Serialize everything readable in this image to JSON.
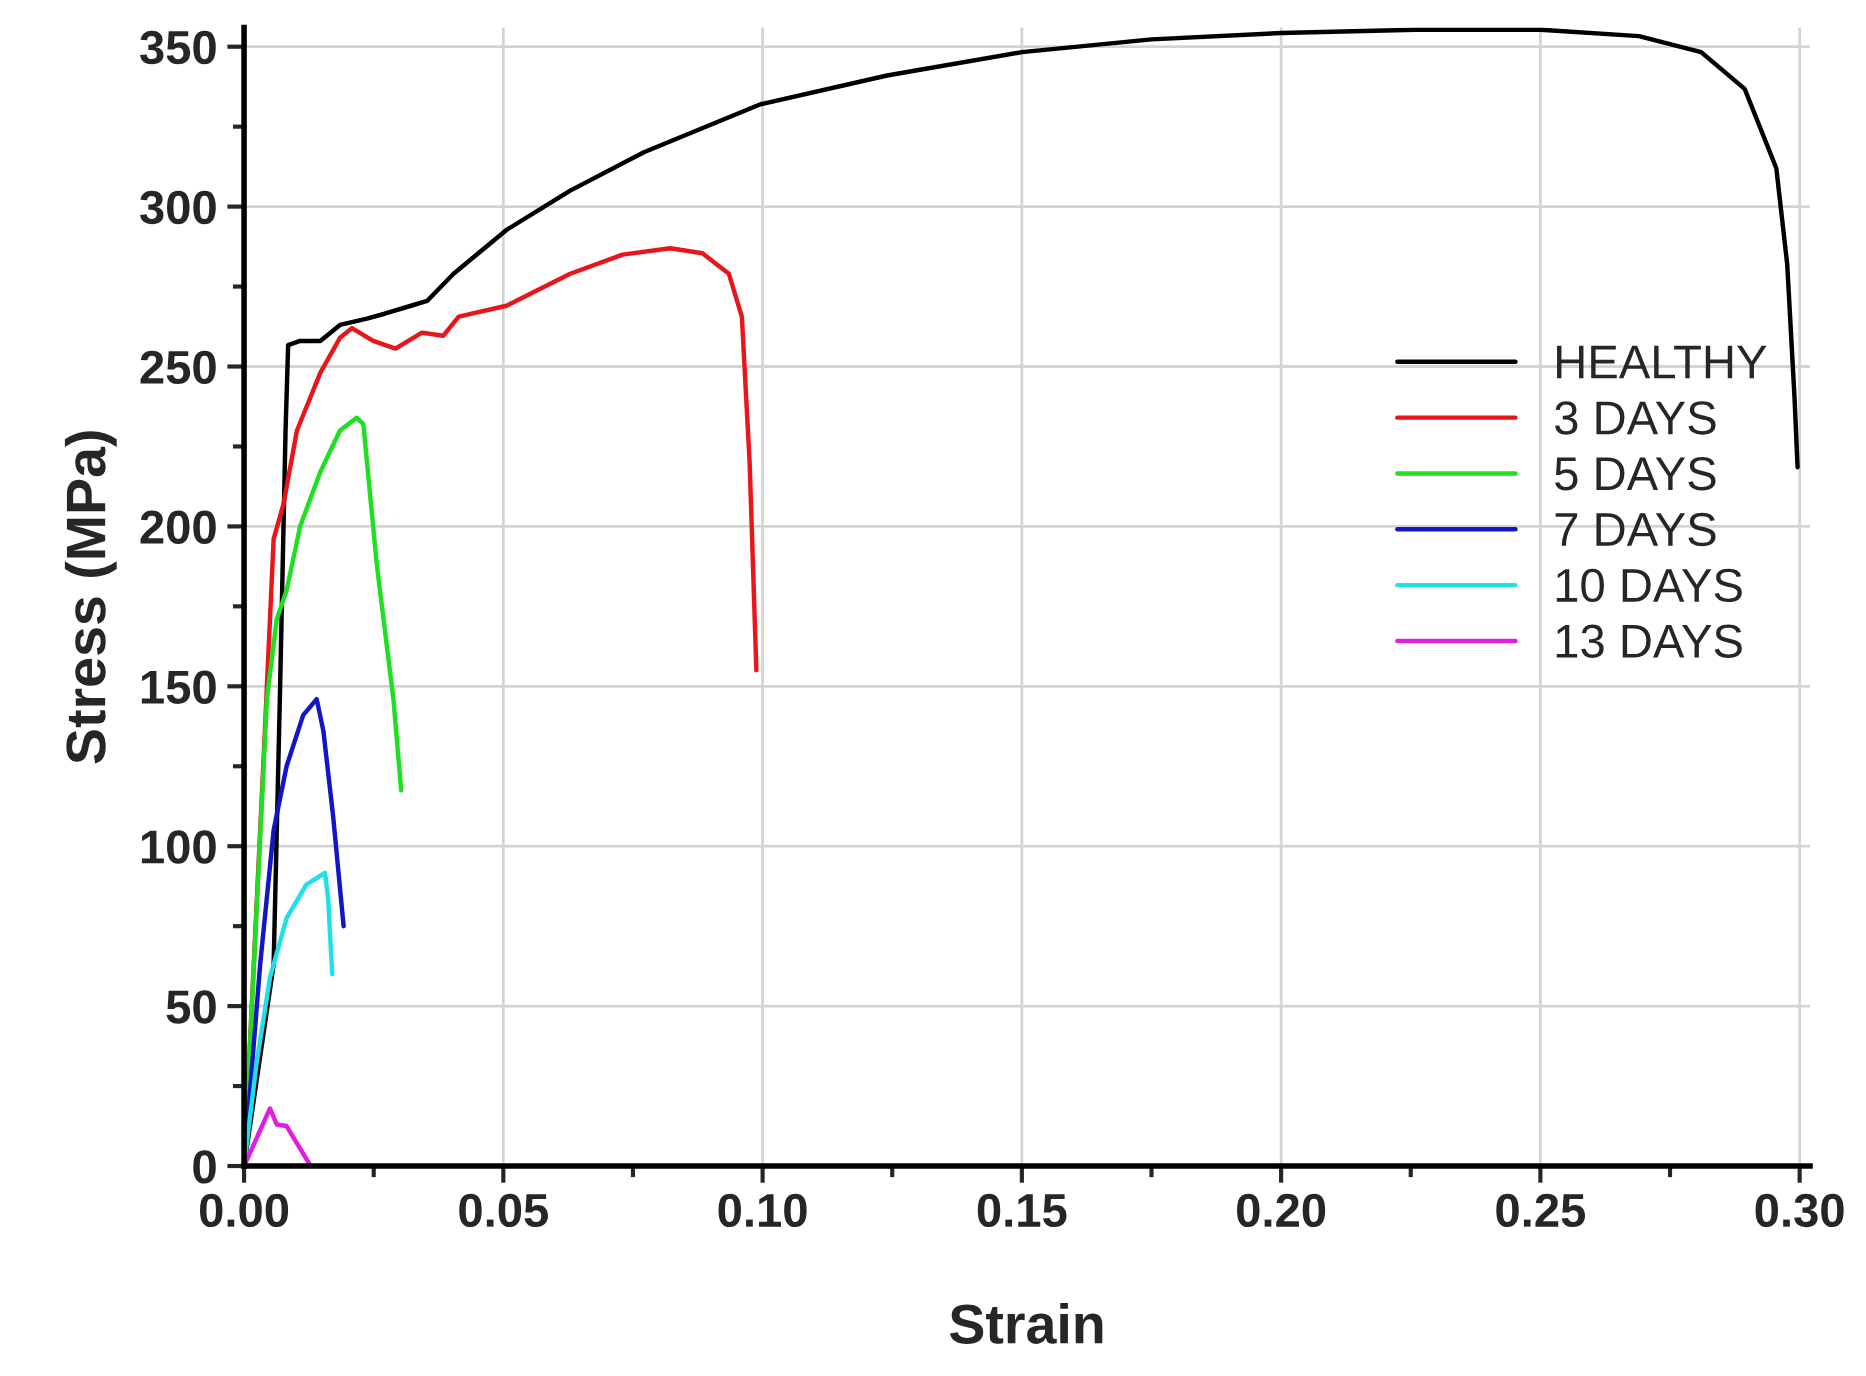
{
  "chart_data": {
    "type": "line",
    "xlabel": "Strain",
    "ylabel": "Stress (MPa)",
    "xlim": [
      0,
      0.302
    ],
    "ylim": [
      0,
      356
    ],
    "xticks": [
      {
        "value": 0,
        "label": "0.00"
      },
      {
        "value": 0.025,
        "label": null
      },
      {
        "value": 0.05,
        "label": "0.05"
      },
      {
        "value": 0.075,
        "label": null
      },
      {
        "value": 0.1,
        "label": "0.10"
      },
      {
        "value": 0.125,
        "label": null
      },
      {
        "value": 0.15,
        "label": "0.15"
      },
      {
        "value": 0.175,
        "label": null
      },
      {
        "value": 0.2,
        "label": "0.20"
      },
      {
        "value": 0.225,
        "label": null
      },
      {
        "value": 0.25,
        "label": "0.25"
      },
      {
        "value": 0.275,
        "label": null
      },
      {
        "value": 0.3,
        "label": "0.30"
      }
    ],
    "yticks": [
      0,
      {
        "value": 25,
        "label": null
      },
      50,
      {
        "value": 75,
        "label": null
      },
      100,
      {
        "value": 125,
        "label": null
      },
      150,
      {
        "value": 175,
        "label": null
      },
      200,
      {
        "value": 225,
        "label": null
      },
      250,
      {
        "value": 275,
        "label": null
      },
      300,
      {
        "value": 325,
        "label": null
      },
      350
    ],
    "grid": true,
    "legend": "right",
    "marker": "none",
    "line_style": "solid",
    "series": [
      {
        "name": "HEALTHY",
        "color": "#000000",
        "x": [
          0,
          0.0057,
          0.0069,
          0.008,
          0.0085,
          0.0108,
          0.0147,
          0.0185,
          0.0237,
          0.0271,
          0.0322,
          0.0353,
          0.0404,
          0.0506,
          0.0629,
          0.0771,
          0.0996,
          0.124,
          0.15,
          0.175,
          0.2,
          0.226,
          0.25,
          0.269,
          0.281,
          0.2894,
          0.2955,
          0.2976,
          0.299,
          0.2996
        ],
        "values": [
          0,
          63,
          146,
          230,
          256.7,
          258,
          258,
          263,
          265,
          266.5,
          269,
          270.5,
          279,
          292.7,
          305,
          317,
          332,
          341,
          348.3,
          352.3,
          354.3,
          355.3,
          355.3,
          353.3,
          348.3,
          336.8,
          312,
          282,
          240.7,
          218.5
        ]
      },
      {
        "name": "3 DAYS",
        "color": "#e8151b",
        "x": [
          0,
          0.0037,
          0.0057,
          0.0076,
          0.0102,
          0.0147,
          0.0185,
          0.0208,
          0.0249,
          0.0292,
          0.0343,
          0.0384,
          0.0414,
          0.0506,
          0.0629,
          0.073,
          0.0822,
          0.0884,
          0.0935,
          0.096,
          0.0975,
          0.0988
        ],
        "values": [
          0,
          125,
          196,
          207,
          230,
          248,
          259,
          262,
          258,
          255.6,
          260.6,
          259.6,
          265.6,
          269,
          279,
          285,
          287,
          285.4,
          279,
          265.6,
          220,
          155
        ]
      },
      {
        "name": "5 DAYS",
        "color": "#1ee01e",
        "x": [
          0,
          0.0044,
          0.0063,
          0.0082,
          0.0108,
          0.0147,
          0.0185,
          0.0217,
          0.023,
          0.0256,
          0.0288,
          0.0303
        ],
        "values": [
          0,
          146,
          171,
          180,
          200,
          217,
          230,
          234,
          232,
          188,
          146,
          117.5
        ]
      },
      {
        "name": "7 DAYS",
        "color": "#1515c8",
        "x": [
          0,
          0.0031,
          0.0057,
          0.0082,
          0.0114,
          0.014,
          0.0153,
          0.0172,
          0.0192
        ],
        "values": [
          0,
          63,
          105,
          125,
          141,
          146,
          136,
          109,
          75
        ]
      },
      {
        "name": "10 DAYS",
        "color": "#1ee0e8",
        "x": [
          0,
          0.0024,
          0.005,
          0.0082,
          0.012,
          0.0156,
          0.0162,
          0.017
        ],
        "values": [
          0,
          32,
          59,
          77.5,
          88,
          91.7,
          84,
          60
        ]
      },
      {
        "name": "13 DAYS",
        "color": "#e01ee0",
        "x": [
          0,
          0.005,
          0.0063,
          0.0082,
          0.0127
        ],
        "values": [
          0,
          18,
          13,
          12.5,
          0.4
        ]
      }
    ]
  }
}
